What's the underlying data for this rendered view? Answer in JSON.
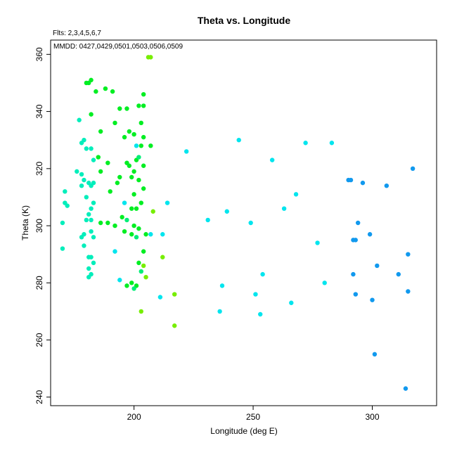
{
  "chart_data": {
    "type": "scatter",
    "title": "Theta vs. Longitude",
    "subtitle": "Flts: 2,3,4,5,6,7",
    "annotation": "MMDD: 0427,0429,0501,0503,0506,0509",
    "xlabel": "Longitude (deg E)",
    "ylabel": "Theta (K)",
    "xlim": [
      165,
      327
    ],
    "ylim": [
      237,
      365
    ],
    "xticks": [
      200,
      250,
      300
    ],
    "yticks": [
      240,
      260,
      280,
      300,
      320,
      340,
      360
    ],
    "grid": false,
    "legend": "none",
    "colors": {
      "green": "#00ee22",
      "spring": "#00ee77",
      "aqua": "#00eebb",
      "cyan": "#00e5ee",
      "blue": "#1199ee",
      "lime": "#77ee00"
    },
    "points": [
      {
        "x": 170,
        "y": 301,
        "c": "aqua"
      },
      {
        "x": 170,
        "y": 292,
        "c": "aqua"
      },
      {
        "x": 171,
        "y": 312,
        "c": "aqua"
      },
      {
        "x": 171,
        "y": 308,
        "c": "aqua"
      },
      {
        "x": 172,
        "y": 307,
        "c": "aqua"
      },
      {
        "x": 176,
        "y": 319,
        "c": "aqua"
      },
      {
        "x": 177,
        "y": 337,
        "c": "aqua"
      },
      {
        "x": 178,
        "y": 329,
        "c": "aqua"
      },
      {
        "x": 178,
        "y": 318,
        "c": "aqua"
      },
      {
        "x": 178,
        "y": 314,
        "c": "aqua"
      },
      {
        "x": 178,
        "y": 296,
        "c": "aqua"
      },
      {
        "x": 179,
        "y": 330,
        "c": "aqua"
      },
      {
        "x": 179,
        "y": 316,
        "c": "aqua"
      },
      {
        "x": 179,
        "y": 297,
        "c": "aqua"
      },
      {
        "x": 179,
        "y": 293,
        "c": "aqua"
      },
      {
        "x": 180,
        "y": 327,
        "c": "aqua"
      },
      {
        "x": 180,
        "y": 310,
        "c": "aqua"
      },
      {
        "x": 180,
        "y": 302,
        "c": "aqua"
      },
      {
        "x": 181,
        "y": 315,
        "c": "aqua"
      },
      {
        "x": 181,
        "y": 304,
        "c": "aqua"
      },
      {
        "x": 181,
        "y": 289,
        "c": "aqua"
      },
      {
        "x": 181,
        "y": 285,
        "c": "aqua"
      },
      {
        "x": 181,
        "y": 282,
        "c": "aqua"
      },
      {
        "x": 182,
        "y": 327,
        "c": "aqua"
      },
      {
        "x": 182,
        "y": 314,
        "c": "aqua"
      },
      {
        "x": 182,
        "y": 306,
        "c": "aqua"
      },
      {
        "x": 182,
        "y": 302,
        "c": "aqua"
      },
      {
        "x": 182,
        "y": 298,
        "c": "aqua"
      },
      {
        "x": 182,
        "y": 289,
        "c": "aqua"
      },
      {
        "x": 182,
        "y": 283,
        "c": "aqua"
      },
      {
        "x": 183,
        "y": 323,
        "c": "aqua"
      },
      {
        "x": 183,
        "y": 315,
        "c": "aqua"
      },
      {
        "x": 183,
        "y": 308,
        "c": "aqua"
      },
      {
        "x": 183,
        "y": 296,
        "c": "aqua"
      },
      {
        "x": 183,
        "y": 287,
        "c": "aqua"
      },
      {
        "x": 180,
        "y": 350,
        "c": "green"
      },
      {
        "x": 181,
        "y": 350,
        "c": "green"
      },
      {
        "x": 182,
        "y": 351,
        "c": "green"
      },
      {
        "x": 182,
        "y": 339,
        "c": "green"
      },
      {
        "x": 184,
        "y": 347,
        "c": "green"
      },
      {
        "x": 185,
        "y": 324,
        "c": "green"
      },
      {
        "x": 186,
        "y": 333,
        "c": "green"
      },
      {
        "x": 186,
        "y": 319,
        "c": "green"
      },
      {
        "x": 186,
        "y": 301,
        "c": "green"
      },
      {
        "x": 188,
        "y": 348,
        "c": "green"
      },
      {
        "x": 189,
        "y": 322,
        "c": "green"
      },
      {
        "x": 189,
        "y": 301,
        "c": "green"
      },
      {
        "x": 190,
        "y": 312,
        "c": "green"
      },
      {
        "x": 191,
        "y": 347,
        "c": "green"
      },
      {
        "x": 192,
        "y": 336,
        "c": "green"
      },
      {
        "x": 192,
        "y": 300,
        "c": "green"
      },
      {
        "x": 193,
        "y": 315,
        "c": "green"
      },
      {
        "x": 194,
        "y": 341,
        "c": "green"
      },
      {
        "x": 194,
        "y": 317,
        "c": "green"
      },
      {
        "x": 195,
        "y": 303,
        "c": "green"
      },
      {
        "x": 196,
        "y": 331,
        "c": "green"
      },
      {
        "x": 196,
        "y": 298,
        "c": "green"
      },
      {
        "x": 197,
        "y": 341,
        "c": "green"
      },
      {
        "x": 197,
        "y": 322,
        "c": "green"
      },
      {
        "x": 197,
        "y": 279,
        "c": "green"
      },
      {
        "x": 198,
        "y": 333,
        "c": "green"
      },
      {
        "x": 198,
        "y": 321,
        "c": "green"
      },
      {
        "x": 199,
        "y": 317,
        "c": "green"
      },
      {
        "x": 199,
        "y": 306,
        "c": "green"
      },
      {
        "x": 199,
        "y": 297,
        "c": "green"
      },
      {
        "x": 199,
        "y": 280,
        "c": "green"
      },
      {
        "x": 200,
        "y": 332,
        "c": "green"
      },
      {
        "x": 200,
        "y": 319,
        "c": "green"
      },
      {
        "x": 200,
        "y": 311,
        "c": "green"
      },
      {
        "x": 200,
        "y": 300,
        "c": "green"
      },
      {
        "x": 201,
        "y": 306,
        "c": "green"
      },
      {
        "x": 201,
        "y": 279,
        "c": "green"
      },
      {
        "x": 202,
        "y": 342,
        "c": "green"
      },
      {
        "x": 202,
        "y": 316,
        "c": "green"
      },
      {
        "x": 202,
        "y": 299,
        "c": "green"
      },
      {
        "x": 202,
        "y": 287,
        "c": "green"
      },
      {
        "x": 203,
        "y": 336,
        "c": "green"
      },
      {
        "x": 203,
        "y": 328,
        "c": "green"
      },
      {
        "x": 203,
        "y": 308,
        "c": "green"
      },
      {
        "x": 204,
        "y": 346,
        "c": "green"
      },
      {
        "x": 204,
        "y": 342,
        "c": "green"
      },
      {
        "x": 204,
        "y": 331,
        "c": "green"
      },
      {
        "x": 204,
        "y": 321,
        "c": "green"
      },
      {
        "x": 204,
        "y": 313,
        "c": "green"
      },
      {
        "x": 204,
        "y": 291,
        "c": "green"
      },
      {
        "x": 205,
        "y": 297,
        "c": "green"
      },
      {
        "x": 207,
        "y": 328,
        "c": "green"
      },
      {
        "x": 201,
        "y": 323,
        "c": "green"
      },
      {
        "x": 197,
        "y": 302,
        "c": "spring"
      },
      {
        "x": 201,
        "y": 296,
        "c": "spring"
      },
      {
        "x": 203,
        "y": 284,
        "c": "spring"
      },
      {
        "x": 202,
        "y": 324,
        "c": "spring"
      },
      {
        "x": 200,
        "y": 278,
        "c": "spring"
      },
      {
        "x": 192,
        "y": 291,
        "c": "cyan"
      },
      {
        "x": 194,
        "y": 281,
        "c": "cyan"
      },
      {
        "x": 196,
        "y": 308,
        "c": "cyan"
      },
      {
        "x": 201,
        "y": 328,
        "c": "cyan"
      },
      {
        "x": 207,
        "y": 297,
        "c": "cyan"
      },
      {
        "x": 211,
        "y": 275,
        "c": "cyan"
      },
      {
        "x": 212,
        "y": 297,
        "c": "cyan"
      },
      {
        "x": 214,
        "y": 308,
        "c": "cyan"
      },
      {
        "x": 222,
        "y": 326,
        "c": "cyan"
      },
      {
        "x": 231,
        "y": 302,
        "c": "cyan"
      },
      {
        "x": 236,
        "y": 270,
        "c": "cyan"
      },
      {
        "x": 237,
        "y": 279,
        "c": "cyan"
      },
      {
        "x": 239,
        "y": 305,
        "c": "cyan"
      },
      {
        "x": 244,
        "y": 330,
        "c": "cyan"
      },
      {
        "x": 249,
        "y": 301,
        "c": "cyan"
      },
      {
        "x": 251,
        "y": 276,
        "c": "cyan"
      },
      {
        "x": 253,
        "y": 269,
        "c": "cyan"
      },
      {
        "x": 254,
        "y": 283,
        "c": "cyan"
      },
      {
        "x": 258,
        "y": 323,
        "c": "cyan"
      },
      {
        "x": 263,
        "y": 306,
        "c": "cyan"
      },
      {
        "x": 266,
        "y": 273,
        "c": "cyan"
      },
      {
        "x": 268,
        "y": 311,
        "c": "cyan"
      },
      {
        "x": 272,
        "y": 329,
        "c": "cyan"
      },
      {
        "x": 277,
        "y": 294,
        "c": "cyan"
      },
      {
        "x": 280,
        "y": 280,
        "c": "cyan"
      },
      {
        "x": 283,
        "y": 329,
        "c": "cyan"
      },
      {
        "x": 290,
        "y": 316,
        "c": "blue"
      },
      {
        "x": 291,
        "y": 316,
        "c": "blue"
      },
      {
        "x": 292,
        "y": 295,
        "c": "blue"
      },
      {
        "x": 292,
        "y": 283,
        "c": "blue"
      },
      {
        "x": 293,
        "y": 295,
        "c": "blue"
      },
      {
        "x": 293,
        "y": 276,
        "c": "blue"
      },
      {
        "x": 294,
        "y": 301,
        "c": "blue"
      },
      {
        "x": 296,
        "y": 315,
        "c": "blue"
      },
      {
        "x": 299,
        "y": 297,
        "c": "blue"
      },
      {
        "x": 300,
        "y": 274,
        "c": "blue"
      },
      {
        "x": 301,
        "y": 255,
        "c": "blue"
      },
      {
        "x": 302,
        "y": 286,
        "c": "blue"
      },
      {
        "x": 306,
        "y": 314,
        "c": "blue"
      },
      {
        "x": 311,
        "y": 283,
        "c": "blue"
      },
      {
        "x": 314,
        "y": 243,
        "c": "blue"
      },
      {
        "x": 315,
        "y": 277,
        "c": "blue"
      },
      {
        "x": 315,
        "y": 290,
        "c": "blue"
      },
      {
        "x": 317,
        "y": 320,
        "c": "blue"
      },
      {
        "x": 206,
        "y": 359,
        "c": "lime"
      },
      {
        "x": 207,
        "y": 359,
        "c": "lime"
      },
      {
        "x": 208,
        "y": 305,
        "c": "lime"
      },
      {
        "x": 212,
        "y": 289,
        "c": "lime"
      },
      {
        "x": 204,
        "y": 286,
        "c": "lime"
      },
      {
        "x": 205,
        "y": 282,
        "c": "lime"
      },
      {
        "x": 203,
        "y": 270,
        "c": "lime"
      },
      {
        "x": 217,
        "y": 276,
        "c": "lime"
      },
      {
        "x": 217,
        "y": 265,
        "c": "lime"
      }
    ]
  }
}
